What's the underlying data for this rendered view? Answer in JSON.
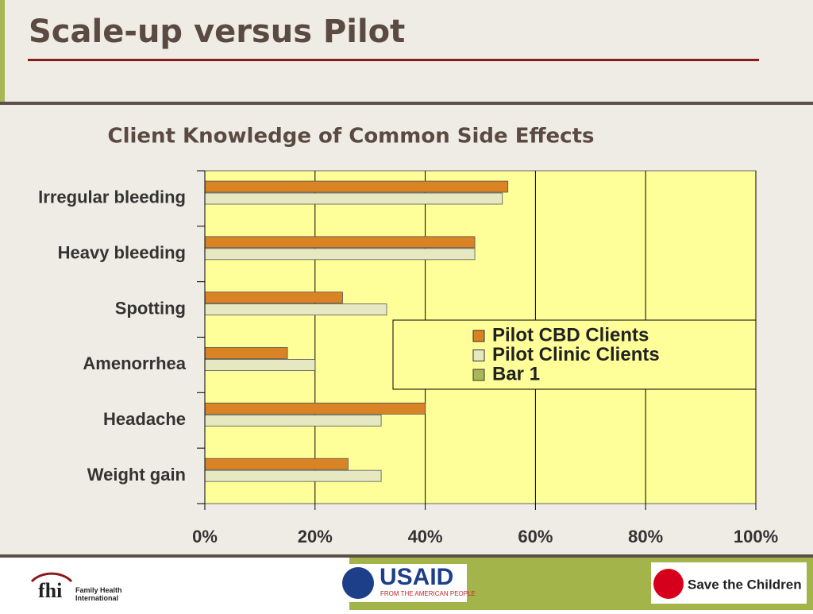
{
  "slide": {
    "title": "Scale-up versus Pilot",
    "logo_fhi": "fhi",
    "logo_fhi_name": "Family Health International",
    "logo_usaid": "USAID",
    "logo_usaid_tagline": "FROM THE AMERICAN PEOPLE",
    "logo_stc": "Save the Children"
  },
  "chart_data": {
    "type": "hbar",
    "title": "Client Knowledge of Common Side Effects",
    "categories": [
      "Irregular bleeding",
      "Heavy bleeding",
      "Spotting",
      "Amenorrhea",
      "Headache",
      "Weight gain"
    ],
    "series": [
      {
        "name": "Pilot CBD Clients",
        "color": "#d98324",
        "values": [
          55,
          49,
          25,
          15,
          40,
          26
        ]
      },
      {
        "name": "Pilot Clinic Clients",
        "color": "#e6e8c2",
        "values": [
          54,
          49,
          33,
          20,
          32,
          32
        ]
      },
      {
        "name": "Bar 1",
        "color": "#a9b857",
        "values": [
          null,
          null,
          null,
          null,
          null,
          null
        ]
      }
    ],
    "xlim": [
      0,
      100
    ],
    "xticks": [
      {
        "value": 0,
        "label": "0%"
      },
      {
        "value": 20,
        "label": "20%"
      },
      {
        "value": 40,
        "label": "40%"
      },
      {
        "value": 60,
        "label": "60%"
      },
      {
        "value": 80,
        "label": "80%"
      },
      {
        "value": 100,
        "label": "100%"
      }
    ],
    "grid": true,
    "plot_background": "#ffff99"
  }
}
